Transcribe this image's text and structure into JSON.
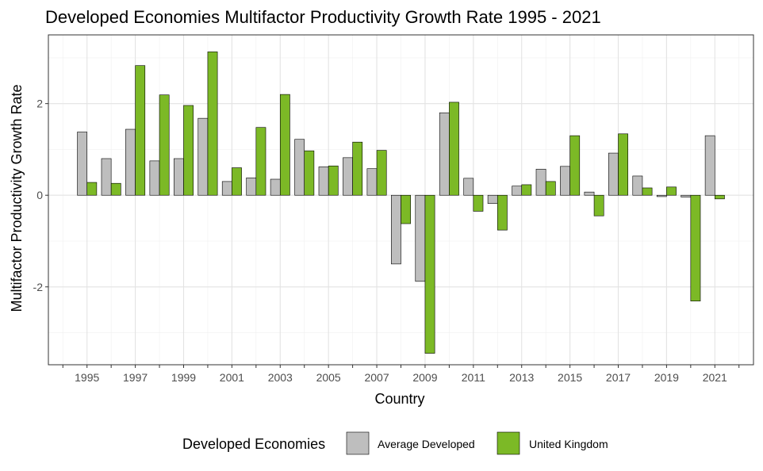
{
  "chart_data": {
    "type": "bar",
    "title": "Developed Economies Multifactor Productivity Growth Rate 1995 - 2021",
    "xlabel": "Country",
    "ylabel": "Multifactor Productivity Growth Rate",
    "categories": [
      1995,
      1996,
      1997,
      1998,
      1999,
      2000,
      2001,
      2002,
      2003,
      2004,
      2005,
      2006,
      2007,
      2008,
      2009,
      2010,
      2011,
      2012,
      2013,
      2014,
      2015,
      2016,
      2017,
      2018,
      2019,
      2020,
      2021
    ],
    "x_tick_labels": [
      "1995",
      "1997",
      "1999",
      "2001",
      "2003",
      "2005",
      "2007",
      "2009",
      "2011",
      "2013",
      "2015",
      "2017",
      "2019",
      "2021"
    ],
    "y_ticks": [
      -2,
      0,
      2
    ],
    "ylim": [
      -3.7,
      3.5
    ],
    "grid": true,
    "legend": {
      "title": "Developed Economies",
      "position": "bottom"
    },
    "series": [
      {
        "name": "Average Developed",
        "color": "#bebebe",
        "values": [
          1.38,
          0.8,
          1.44,
          0.75,
          0.8,
          1.68,
          0.3,
          0.38,
          0.35,
          1.22,
          0.62,
          0.82,
          0.58,
          -1.5,
          -1.88,
          1.8,
          0.37,
          -0.18,
          0.2,
          0.57,
          0.63,
          0.07,
          0.92,
          0.42,
          -0.03,
          -0.04,
          1.3
        ]
      },
      {
        "name": "United Kingdom",
        "color": "#7cb926",
        "values": [
          0.28,
          0.26,
          2.83,
          2.19,
          1.96,
          3.13,
          0.6,
          1.48,
          2.2,
          0.97,
          0.64,
          1.16,
          0.98,
          -0.62,
          -3.45,
          2.03,
          -0.35,
          -0.76,
          0.23,
          0.3,
          1.3,
          -0.45,
          1.34,
          0.16,
          0.18,
          -2.31,
          -0.08
        ]
      }
    ]
  }
}
